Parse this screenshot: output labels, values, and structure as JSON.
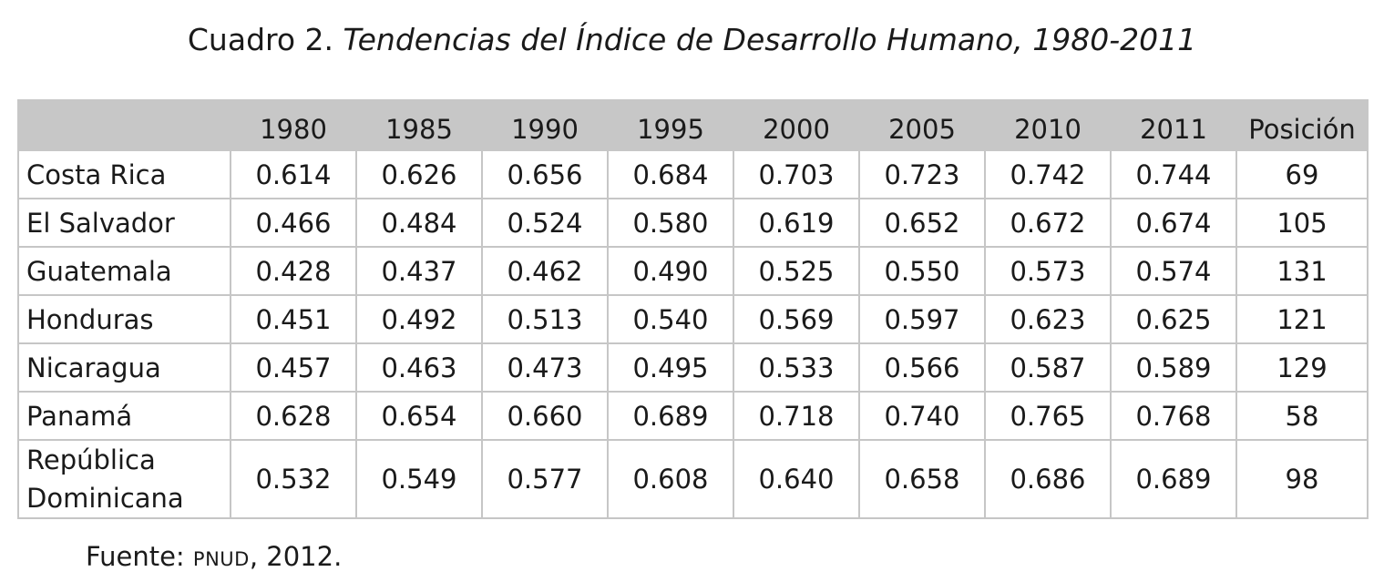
{
  "title": {
    "prefix": "Cuadro 2.",
    "italic": "Tendencias del Índice de Desarrollo Humano, 1980-2011"
  },
  "table": {
    "columns": [
      "1980",
      "1985",
      "1990",
      "1995",
      "2000",
      "2005",
      "2010",
      "2011",
      "Posición"
    ],
    "rows": [
      {
        "country": "Costa Rica",
        "values": [
          "0.614",
          "0.626",
          "0.656",
          "0.684",
          "0.703",
          "0.723",
          "0.742",
          "0.744",
          "69"
        ]
      },
      {
        "country": "El Salvador",
        "values": [
          "0.466",
          "0.484",
          "0.524",
          "0.580",
          "0.619",
          "0.652",
          "0.672",
          "0.674",
          "105"
        ]
      },
      {
        "country": "Guatemala",
        "values": [
          "0.428",
          "0.437",
          "0.462",
          "0.490",
          "0.525",
          "0.550",
          "0.573",
          "0.574",
          "131"
        ]
      },
      {
        "country": "Honduras",
        "values": [
          "0.451",
          "0.492",
          "0.513",
          "0.540",
          "0.569",
          "0.597",
          "0.623",
          "0.625",
          "121"
        ]
      },
      {
        "country": "Nicaragua",
        "values": [
          "0.457",
          "0.463",
          "0.473",
          "0.495",
          "0.533",
          "0.566",
          "0.587",
          "0.589",
          "129"
        ]
      },
      {
        "country": "Panamá",
        "values": [
          "0.628",
          "0.654",
          "0.660",
          "0.689",
          "0.718",
          "0.740",
          "0.765",
          "0.768",
          "58"
        ]
      },
      {
        "country_line1": "República",
        "country_line2": "Dominicana",
        "values": [
          "0.532",
          "0.549",
          "0.577",
          "0.608",
          "0.640",
          "0.658",
          "0.686",
          "0.689",
          "98"
        ]
      }
    ]
  },
  "source": {
    "label": "Fuente:",
    "org": "PNUD",
    "year": ", 2012."
  }
}
